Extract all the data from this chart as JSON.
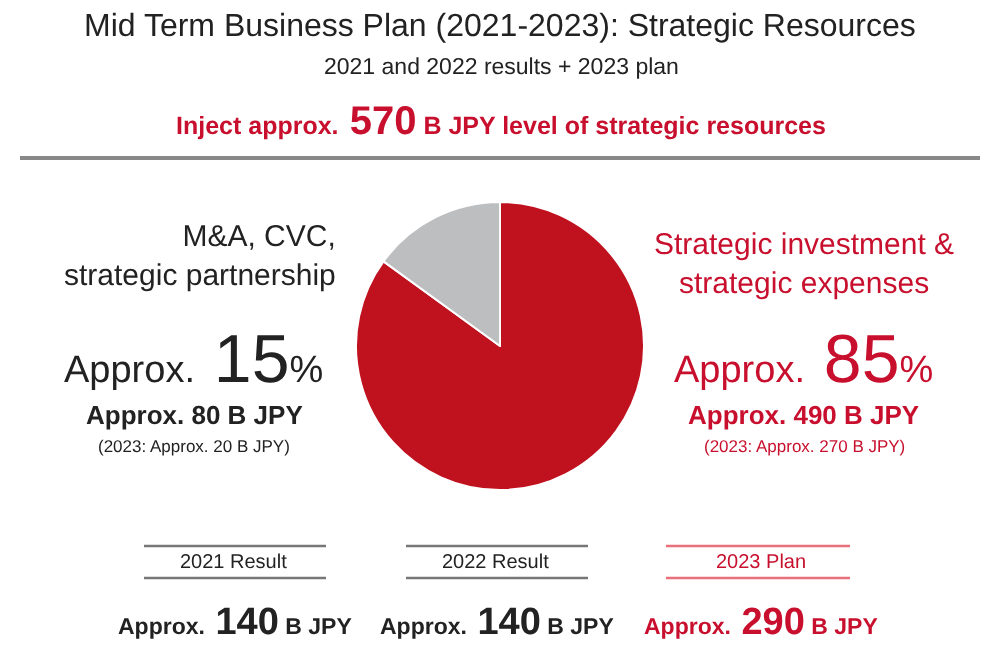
{
  "chart_data": {
    "type": "pie",
    "title": "Mid Term Business Plan (2021-2023): Strategic Resources",
    "subtitle": "2021 and 2022 results + 2023 plan",
    "categories": [
      "Strategic investment &\nstrategic expenses",
      "M&A, CVC,\nstrategic partnership"
    ],
    "values": [
      85,
      15
    ],
    "colors": [
      "#c0111f",
      "#bcbec0"
    ],
    "value_labels": [
      "Approx. 85%",
      "Approx. 15%"
    ],
    "annotations": [
      "Inject approx. 570 B JPY level of strategic resources",
      "Approx. 490 B JPY",
      "(2023: Approx. 270 B JPY)",
      "Approx. 80 B JPY",
      "(2023: Approx. 20 B JPY)",
      "2021 Result",
      "2022 Result",
      "2023 Plan",
      "Approx. 140 B JPY",
      "Approx. 140 B JPY",
      "Approx. 290 B JPY"
    ]
  }
}
